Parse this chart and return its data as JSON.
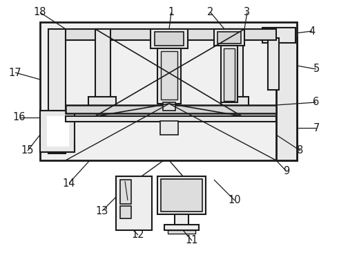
{
  "bg_color": "#ffffff",
  "line_color": "#1a1a1a",
  "figsize": [
    4.91,
    3.66
  ],
  "dpi": 100,
  "label_fontsize": 10.5
}
